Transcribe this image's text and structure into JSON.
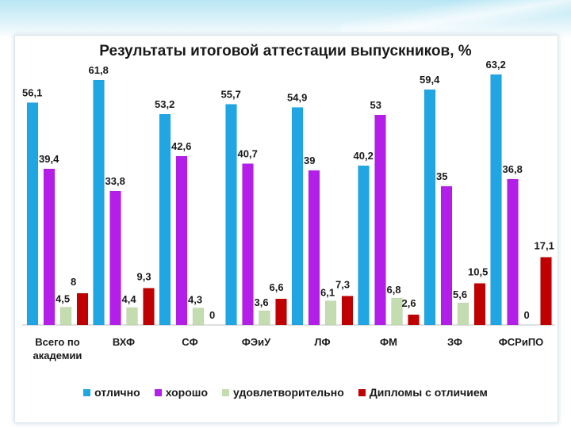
{
  "chart_data": {
    "type": "bar",
    "title": "Результаты итоговой аттестации выпускников, %",
    "categories": [
      "Всего по академии",
      "ВХФ",
      "СФ",
      "ФЭиУ",
      "ЛФ",
      "ФМ",
      "ЗФ",
      "ФСРиПО"
    ],
    "category_labels": [
      [
        "Всего по",
        "академии"
      ],
      [
        "ВХФ"
      ],
      [
        "СФ"
      ],
      [
        "ФЭиУ"
      ],
      [
        "ЛФ"
      ],
      [
        "ФМ"
      ],
      [
        "ЗФ"
      ],
      [
        "ФСРиПО"
      ]
    ],
    "series": [
      {
        "name": "отлично",
        "color": "#1fa6e3",
        "values": [
          56.1,
          61.8,
          53.2,
          55.7,
          54.9,
          40.2,
          59.4,
          63.2
        ]
      },
      {
        "name": "хорошо",
        "color": "#b31ee8",
        "values": [
          39.4,
          33.8,
          42.6,
          40.7,
          39,
          53,
          35,
          36.8
        ]
      },
      {
        "name": "удовлетворительно",
        "color": "#c4ddb0",
        "values": [
          4.5,
          4.4,
          4.3,
          3.6,
          6.1,
          6.8,
          5.6,
          0
        ]
      },
      {
        "name": "Дипломы с отличием",
        "color": "#c00000",
        "values": [
          8,
          9.3,
          0,
          6.6,
          7.3,
          2.6,
          10.5,
          17.1
        ]
      }
    ],
    "xlabel": "",
    "ylabel": "",
    "ylim": [
      0,
      70
    ],
    "grid": false,
    "legend": "bottom"
  }
}
